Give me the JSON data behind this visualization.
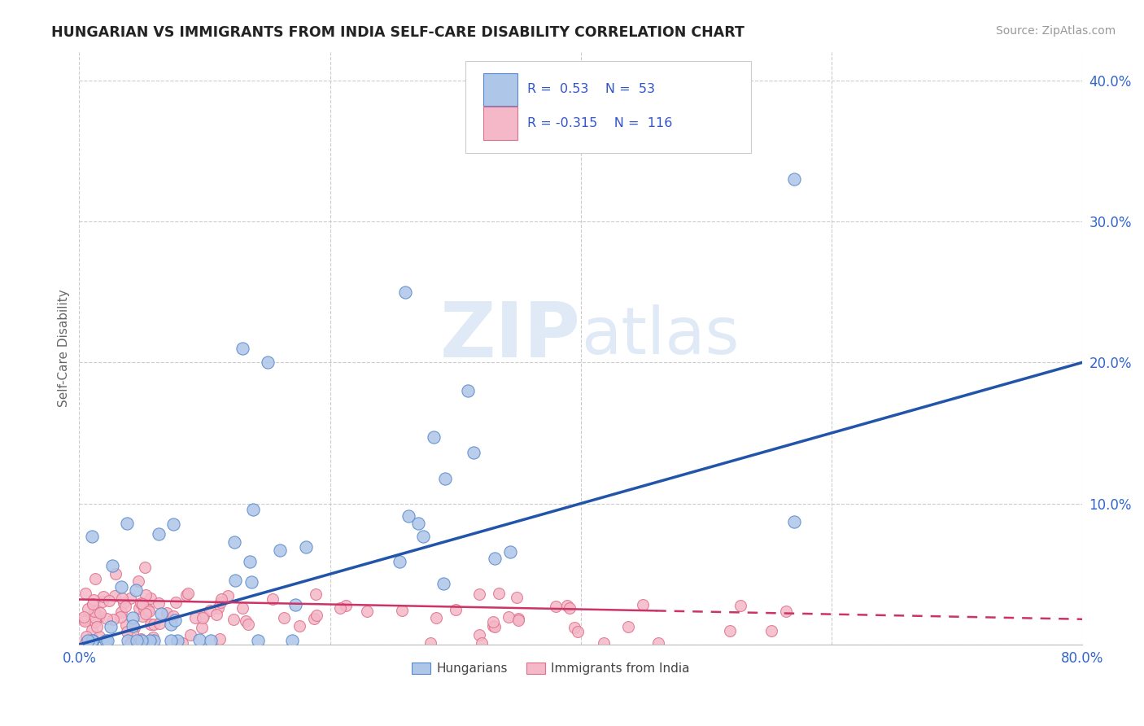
{
  "title": "HUNGARIAN VS IMMIGRANTS FROM INDIA SELF-CARE DISABILITY CORRELATION CHART",
  "source": "Source: ZipAtlas.com",
  "ylabel": "Self-Care Disability",
  "xlim": [
    0.0,
    0.8
  ],
  "ylim": [
    0.0,
    0.42
  ],
  "xticks": [
    0.0,
    0.2,
    0.4,
    0.6,
    0.8
  ],
  "yticks": [
    0.0,
    0.1,
    0.2,
    0.3,
    0.4
  ],
  "xticklabels": [
    "0.0%",
    "",
    "",
    "",
    "80.0%"
  ],
  "yticklabels": [
    "",
    "10.0%",
    "20.0%",
    "30.0%",
    "40.0%"
  ],
  "hungarian_color": "#aec6e8",
  "india_color": "#f4b8c8",
  "hungarian_edge": "#5588cc",
  "india_edge": "#e0708a",
  "trendline_hungarian_color": "#2255aa",
  "trendline_india_color": "#cc3366",
  "legend_box_hungarian": "#aec6e8",
  "legend_box_india": "#f4b8c8",
  "legend_text_color": "#3355cc",
  "R_hungarian": 0.53,
  "N_hungarian": 53,
  "R_india": -0.315,
  "N_india": 116,
  "watermark_zip": "ZIP",
  "watermark_atlas": "atlas",
  "background_color": "#ffffff",
  "plot_bg_color": "#ffffff",
  "grid_color": "#cccccc",
  "trend_h_x0": 0.0,
  "trend_h_y0": 0.0,
  "trend_h_x1": 0.8,
  "trend_h_y1": 0.2,
  "trend_i_x0": 0.0,
  "trend_i_y0": 0.032,
  "trend_i_x1_solid": 0.46,
  "trend_i_y1_solid": 0.024,
  "trend_i_x2": 0.8,
  "trend_i_y2": 0.018
}
